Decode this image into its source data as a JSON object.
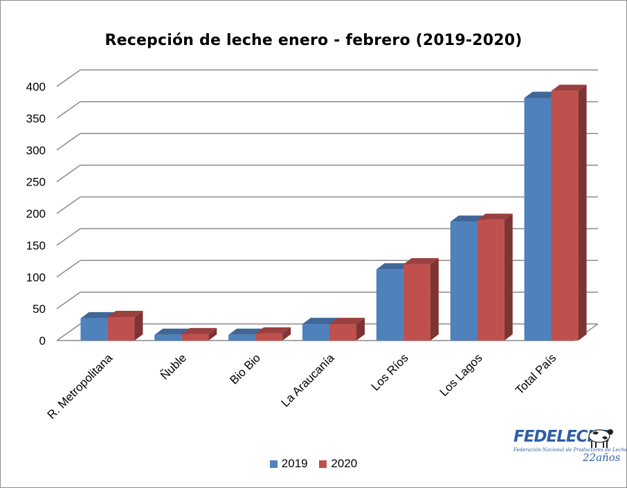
{
  "chart_data": {
    "type": "bar",
    "title": "Recepción de leche enero - febrero  (2019-2020)",
    "categories": [
      "R. Metropolitana",
      "Ñuble",
      "Bio  Bio",
      "La Araucanía",
      "Los Ríos",
      "Los Lagos",
      "Total País"
    ],
    "series": [
      {
        "name": "2019",
        "color": "#4f81bd",
        "values": [
          35,
          9,
          9,
          26,
          112,
          187,
          382
        ]
      },
      {
        "name": "2020",
        "color": "#c0504d",
        "values": [
          37,
          10,
          11,
          26,
          120,
          190,
          393
        ]
      }
    ],
    "ylim": [
      0,
      400
    ],
    "yticks": [
      0,
      50,
      100,
      150,
      200,
      250,
      300,
      350,
      400
    ],
    "grid": true,
    "legend_position": "bottom",
    "style": "3d-clustered-column"
  },
  "logo": {
    "name": "FEDELECHE",
    "subtitle": "Federación Nacional de Productores de Leche",
    "years": "22años"
  }
}
